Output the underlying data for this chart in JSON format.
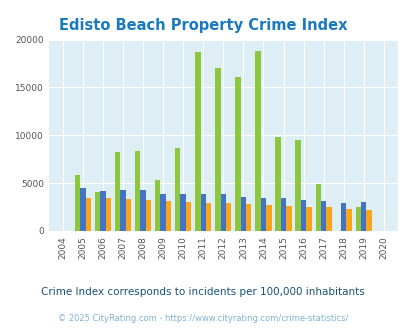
{
  "title": "Edisto Beach Property Crime Index",
  "years": [
    2004,
    2005,
    2006,
    2007,
    2008,
    2009,
    2010,
    2011,
    2012,
    2013,
    2014,
    2015,
    2016,
    2017,
    2018,
    2019,
    2020
  ],
  "edisto_beach": [
    0,
    5800,
    4100,
    8300,
    8400,
    5300,
    8700,
    18700,
    17000,
    16100,
    18800,
    9800,
    9500,
    4900,
    0,
    2500,
    0
  ],
  "south_carolina": [
    0,
    4500,
    4200,
    4300,
    4300,
    3900,
    3900,
    3900,
    3900,
    3600,
    3500,
    3400,
    3200,
    3100,
    2900,
    3050,
    0
  ],
  "national": [
    0,
    3500,
    3400,
    3300,
    3200,
    3100,
    3000,
    2900,
    2900,
    2800,
    2700,
    2600,
    2500,
    2500,
    2300,
    2200,
    0
  ],
  "edisto_color": "#8dc63f",
  "sc_color": "#4472c4",
  "national_color": "#faa519",
  "bg_color": "#ddeef5",
  "ylim": [
    0,
    20000
  ],
  "yticks": [
    0,
    5000,
    10000,
    15000,
    20000
  ],
  "title_color": "#1a7abf",
  "subtitle": "Crime Index corresponds to incidents per 100,000 inhabitants",
  "footer": "© 2025 CityRating.com - https://www.cityrating.com/crime-statistics/",
  "subtitle_color": "#1a5276",
  "footer_color": "#7fb3d3",
  "bar_width": 0.27,
  "figsize": [
    4.06,
    3.3
  ],
  "dpi": 100
}
